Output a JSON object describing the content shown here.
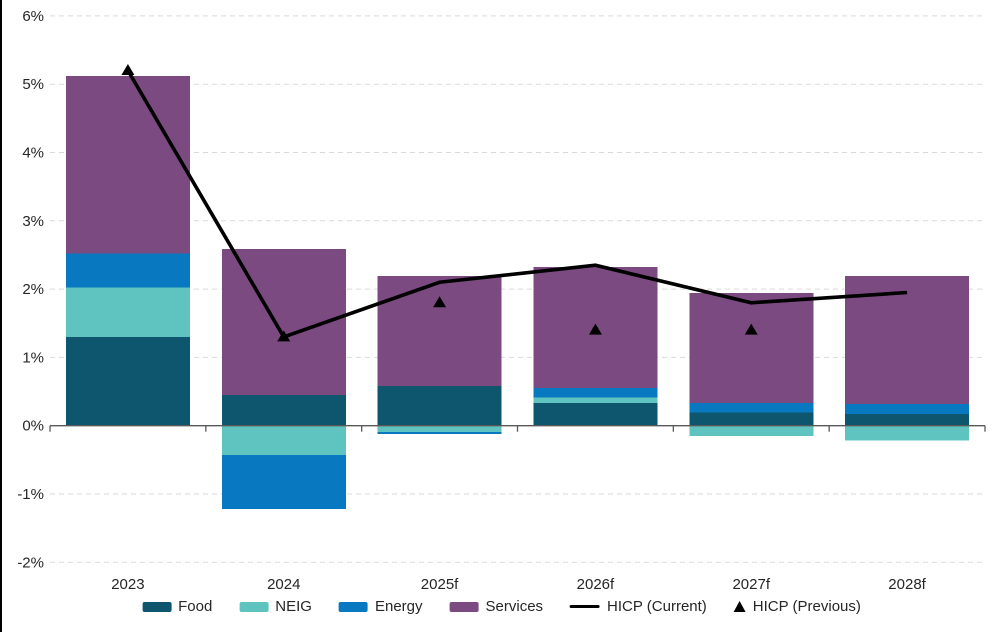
{
  "chart_data": {
    "type": "bar",
    "subtype": "stacked-bar-with-line-overlay",
    "title": "",
    "categories": [
      "2023",
      "2024",
      "2025f",
      "2026f",
      "2027f",
      "2028f"
    ],
    "series": [
      {
        "name": "Food",
        "color": "#0e566e",
        "values": [
          1.3,
          0.45,
          0.58,
          0.33,
          0.19,
          0.17
        ]
      },
      {
        "name": "NEIG",
        "color": "#5fc4c0",
        "values": [
          0.72,
          -0.43,
          -0.09,
          0.08,
          -0.15,
          -0.22
        ]
      },
      {
        "name": "Energy",
        "color": "#0878c0",
        "values": [
          0.5,
          -0.79,
          -0.03,
          0.14,
          0.14,
          0.15
        ]
      },
      {
        "name": "Services",
        "color": "#7b4a80",
        "values": [
          2.6,
          2.14,
          1.61,
          1.77,
          1.61,
          1.87
        ]
      }
    ],
    "overlays": [
      {
        "type": "line",
        "name": "HICP (Current)",
        "color": "#000000",
        "values": [
          5.2,
          1.3,
          2.1,
          2.35,
          1.8,
          1.95
        ]
      },
      {
        "type": "triangle-marker",
        "name": "HICP (Previous)",
        "color": "#000000",
        "values": [
          5.2,
          1.3,
          1.8,
          1.4,
          1.4,
          null
        ]
      }
    ],
    "ylim": [
      -2,
      6
    ],
    "yticks": [
      {
        "value": 6,
        "label": "6%"
      },
      {
        "value": 5,
        "label": "5%"
      },
      {
        "value": 4,
        "label": "4%"
      },
      {
        "value": 3,
        "label": "3%"
      },
      {
        "value": 2,
        "label": "2%"
      },
      {
        "value": 1,
        "label": "1%"
      },
      {
        "value": 0,
        "label": "0%"
      },
      {
        "value": -1,
        "label": "-1%"
      },
      {
        "value": -2,
        "label": "-2%"
      }
    ],
    "xlabel": "",
    "ylabel": "",
    "grid": "horizontal-dashed",
    "legend_position": "bottom"
  },
  "legend": {
    "items": [
      {
        "label": "Food",
        "swatch": "rect",
        "color": "#0e566e"
      },
      {
        "label": "NEIG",
        "swatch": "rect",
        "color": "#5fc4c0"
      },
      {
        "label": "Energy",
        "swatch": "rect",
        "color": "#0878c0"
      },
      {
        "label": "Services",
        "swatch": "rect",
        "color": "#7b4a80"
      },
      {
        "label": "HICP (Current)",
        "swatch": "line",
        "color": "#000000"
      },
      {
        "label": "HICP (Previous)",
        "swatch": "triangle",
        "color": "#000000"
      }
    ]
  },
  "colors": {
    "background": "#ffffff",
    "grid": "#d9d9d9",
    "axis": "#595959",
    "text": "#262626",
    "left_border": "#000000"
  }
}
